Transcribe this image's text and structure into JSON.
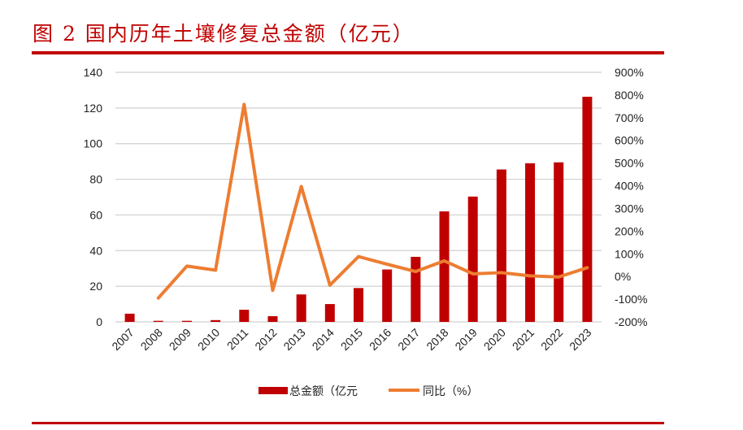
{
  "title": "图 2 国内历年土壤修复总金额（亿元）",
  "chart_data": {
    "type": "bar+line",
    "title": "图 2 国内历年土壤修复总金额（亿元）",
    "categories": [
      "2007",
      "2008",
      "2009",
      "2010",
      "2011",
      "2012",
      "2013",
      "2014",
      "2015",
      "2016",
      "2017",
      "2018",
      "2019",
      "2020",
      "2021",
      "2022",
      "2023"
    ],
    "series": [
      {
        "name": "总金额（亿元",
        "type": "bar",
        "axis": "left",
        "color": "#c00000",
        "values": [
          4.6,
          0.6,
          0.6,
          1.0,
          6.8,
          3.2,
          15.4,
          10.0,
          19.0,
          29.4,
          36.5,
          62.0,
          70.3,
          85.5,
          89.0,
          89.5,
          126.3
        ]
      },
      {
        "name": "同比（%）",
        "type": "line",
        "axis": "right",
        "color": "#ed7d31",
        "values": [
          null,
          -95,
          46,
          28,
          759,
          -61,
          397,
          -38,
          88,
          54,
          22,
          69,
          12,
          17,
          3,
          -2,
          39
        ]
      }
    ],
    "left_axis": {
      "range": [
        0,
        140
      ],
      "ticks": [
        "0",
        "20",
        "40",
        "60",
        "80",
        "100",
        "120",
        "140"
      ]
    },
    "right_axis": {
      "range": [
        -200,
        900
      ],
      "ticks": [
        "-200%",
        "-100%",
        "0%",
        "100%",
        "200%",
        "300%",
        "400%",
        "500%",
        "600%",
        "700%",
        "800%",
        "900%"
      ]
    },
    "grid": true,
    "legend_position": "bottom"
  }
}
